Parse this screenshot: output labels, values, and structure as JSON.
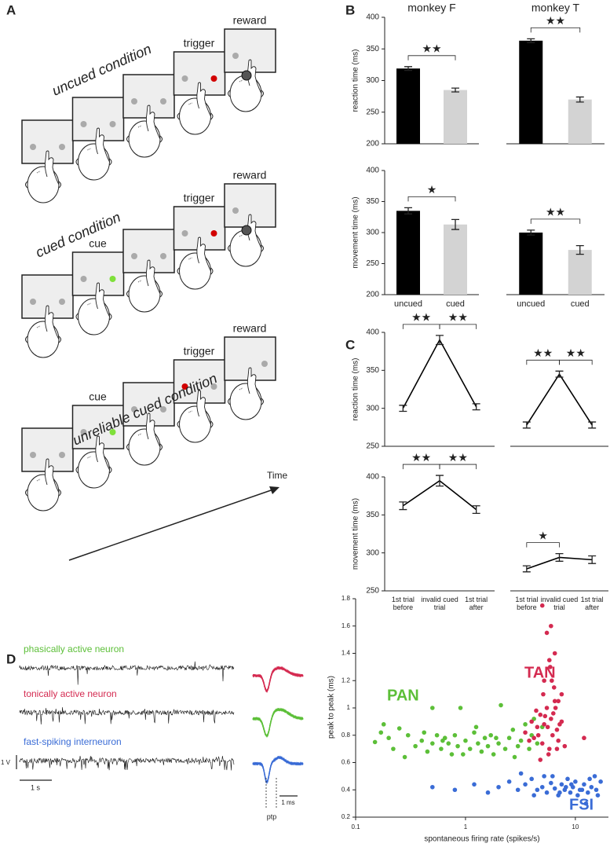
{
  "panel_labels": [
    "A",
    "B",
    "C",
    "D"
  ],
  "panel_a": {
    "conditions": [
      {
        "title": "uncued condition",
        "events": [
          "trigger",
          "reward"
        ]
      },
      {
        "title": "cued condition",
        "events": [
          "cue",
          "trigger",
          "reward"
        ]
      },
      {
        "title": "unreliable cued condition",
        "events": [
          "cue",
          "trigger",
          "reward"
        ]
      }
    ],
    "time_label": "Time"
  },
  "panel_d": {
    "neurons": [
      {
        "name": "phasically active neuron",
        "color": "#5cbf38"
      },
      {
        "name": "tonically active neuron",
        "color": "#d42a50"
      },
      {
        "name": "fast-spiking interneuron",
        "color": "#3a6cd6"
      }
    ],
    "voltage_scale": "1 V",
    "time_scale": "1 s",
    "waveform_scale": "1 ms",
    "ptp": "ptp"
  },
  "chart_data": [
    {
      "type": "bar",
      "title": "monkey F",
      "ylabel": "reaction time (ms)",
      "values": [
        319,
        285
      ],
      "errors": [
        3,
        3
      ],
      "colors": [
        "#000000",
        "#d3d3d3"
      ],
      "ylim": [
        200,
        400
      ],
      "yticks": [
        200,
        250,
        300,
        350,
        400
      ],
      "annotations": [
        "★★"
      ]
    },
    {
      "type": "bar",
      "title": "monkey T",
      "values": [
        363,
        270
      ],
      "errors": [
        3,
        4
      ],
      "colors": [
        "#000000",
        "#d3d3d3"
      ],
      "ylim": [
        200,
        400
      ],
      "annotations": [
        "★★"
      ]
    },
    {
      "type": "bar",
      "ylabel": "movement time (ms)",
      "categories": [
        "uncued",
        "cued"
      ],
      "values": [
        335,
        313
      ],
      "errors": [
        5,
        8
      ],
      "colors": [
        "#000000",
        "#d3d3d3"
      ],
      "ylim": [
        200,
        400
      ],
      "yticks": [
        200,
        250,
        300,
        350,
        400
      ],
      "annotations": [
        "★"
      ]
    },
    {
      "type": "bar",
      "categories": [
        "uncued",
        "cued"
      ],
      "values": [
        300,
        272
      ],
      "errors": [
        4,
        7
      ],
      "colors": [
        "#000000",
        "#d3d3d3"
      ],
      "ylim": [
        200,
        400
      ],
      "annotations": [
        "★★"
      ]
    },
    {
      "type": "line",
      "ylabel": "reaction time (ms)",
      "values": [
        300,
        390,
        302
      ],
      "errors": [
        4,
        6,
        4
      ],
      "color": "#000000",
      "ylim": [
        250,
        400
      ],
      "yticks": [
        250,
        300,
        350,
        400
      ],
      "annotations": [
        "★★",
        "★★"
      ]
    },
    {
      "type": "line",
      "values": [
        278,
        345,
        278
      ],
      "errors": [
        4,
        4,
        4
      ],
      "color": "#000000",
      "ylim": [
        250,
        400
      ],
      "annotations": [
        "★★",
        "★★"
      ]
    },
    {
      "type": "line",
      "ylabel": "movement time (ms)",
      "categories": [
        "1st trial before",
        "invalid cued trial",
        "1st trial after"
      ],
      "values": [
        362,
        395,
        357
      ],
      "errors": [
        5,
        7,
        5
      ],
      "color": "#000000",
      "ylim": [
        250,
        400
      ],
      "yticks": [
        250,
        300,
        350,
        400
      ],
      "annotations": [
        "★★",
        "★★"
      ]
    },
    {
      "type": "line",
      "categories": [
        "1st trial before",
        "invalid cued trial",
        "1st trial after"
      ],
      "values": [
        279,
        294,
        291
      ],
      "errors": [
        4,
        5,
        5
      ],
      "color": "#000000",
      "ylim": [
        250,
        400
      ],
      "annotations": [
        "★"
      ]
    },
    {
      "type": "scatter",
      "xlabel": "spontaneous firing rate (spikes/s)",
      "ylabel": "peak to peak (ms)",
      "xscale": "log",
      "xlim": [
        0.1,
        20
      ],
      "xticks": [
        0.1,
        1,
        10
      ],
      "ylim": [
        0.2,
        1.8
      ],
      "yticks": [
        0.2,
        0.4,
        0.6,
        0.8,
        1.0,
        1.2,
        1.4,
        1.6,
        1.8
      ],
      "series": [
        {
          "name": "PAN",
          "color": "#5cbf38",
          "x": [
            0.15,
            0.17,
            0.2,
            0.22,
            0.25,
            0.3,
            0.35,
            0.4,
            0.45,
            0.5,
            0.55,
            0.6,
            0.65,
            0.7,
            0.75,
            0.8,
            0.85,
            0.9,
            1.0,
            1.1,
            1.2,
            1.3,
            1.4,
            1.5,
            1.6,
            1.7,
            1.8,
            2.0,
            2.1,
            2.3,
            2.5,
            2.7,
            3.0,
            3.2,
            3.5,
            3.8,
            4.0,
            4.5,
            5.0,
            0.18,
            0.28,
            0.42,
            0.62,
            0.95,
            1.25,
            1.9,
            2.8,
            4.2,
            0.5
          ],
          "values": [
            0.75,
            0.82,
            0.78,
            0.7,
            0.85,
            0.8,
            0.72,
            0.76,
            0.68,
            0.74,
            0.8,
            0.7,
            0.78,
            0.74,
            0.66,
            0.8,
            0.72,
            1.0,
            0.76,
            0.7,
            0.82,
            0.74,
            0.68,
            0.78,
            0.72,
            0.8,
            0.66,
            0.74,
            1.02,
            0.7,
            0.78,
            0.84,
            0.72,
            0.76,
            0.88,
            0.7,
            0.8,
            0.74,
            0.86,
            0.88,
            0.64,
            0.82,
            0.76,
            0.66,
            0.86,
            0.78,
            0.64,
            0.92,
            1.0
          ]
        },
        {
          "name": "TAN",
          "color": "#d42a50",
          "x": [
            3.5,
            4,
            4.2,
            4.5,
            4.8,
            5,
            5.2,
            5.5,
            5.8,
            6,
            6.2,
            6.5,
            6.8,
            7,
            7.5,
            8,
            3.8,
            4.4,
            5.1,
            5.6,
            6.1,
            6.6,
            7.2,
            4.6,
            5.3,
            5.9,
            6.4,
            7,
            5,
            5.5,
            6,
            6.5,
            5.2,
            5.8,
            6.3,
            7.5,
            12,
            4.8,
            5.7,
            6.8
          ],
          "values": [
            0.82,
            0.9,
            0.78,
            0.86,
            0.95,
            0.74,
            0.88,
            1.0,
            0.7,
            0.92,
            0.8,
            1.05,
            0.84,
            0.76,
            0.9,
            0.72,
            0.76,
            0.98,
            1.1,
            0.86,
            1.2,
            1.0,
            0.88,
            0.8,
            0.94,
            1.3,
            1.15,
            1.05,
            1.75,
            1.55,
            1.6,
            1.4,
            1.2,
            1.35,
            0.96,
            1.1,
            0.78,
            0.62,
            0.66,
            0.7
          ]
        },
        {
          "name": "FSI",
          "color": "#3a6cd6",
          "x": [
            0.5,
            0.8,
            1.2,
            1.6,
            2,
            2.5,
            3,
            3.5,
            4,
            4.5,
            5,
            5.5,
            6,
            6.5,
            7,
            7.5,
            8,
            8.5,
            9,
            9.5,
            10,
            11,
            12,
            13,
            14,
            15,
            16,
            17,
            6.2,
            7.2,
            8.2,
            9.2,
            10.5,
            11.5,
            12.5,
            13.5,
            5.2,
            4.2,
            3.2,
            15.5
          ],
          "values": [
            0.42,
            0.4,
            0.44,
            0.38,
            0.42,
            0.46,
            0.4,
            0.44,
            0.48,
            0.4,
            0.42,
            0.38,
            0.45,
            0.41,
            0.36,
            0.44,
            0.4,
            0.48,
            0.38,
            0.42,
            0.46,
            0.4,
            0.44,
            0.38,
            0.42,
            0.5,
            0.36,
            0.46,
            0.5,
            0.38,
            0.42,
            0.44,
            0.36,
            0.4,
            0.3,
            0.48,
            0.5,
            0.36,
            0.52,
            0.4
          ]
        }
      ]
    }
  ]
}
